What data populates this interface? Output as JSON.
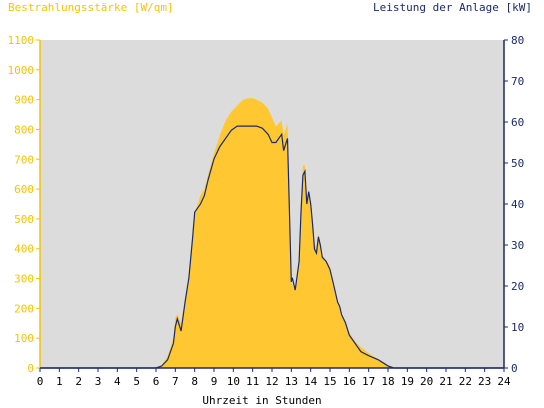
{
  "chart_data": {
    "type": "area",
    "title_left": "Bestrahlungsstärke [W/qm]",
    "title_right": "Leistung der Anlage [kW]",
    "xlabel": "Uhrzeit in Stunden",
    "xlim": [
      0,
      24
    ],
    "xticks": [
      0,
      1,
      2,
      3,
      4,
      5,
      6,
      7,
      8,
      9,
      10,
      11,
      12,
      13,
      14,
      15,
      16,
      17,
      18,
      19,
      20,
      21,
      22,
      23,
      24
    ],
    "y_left": {
      "lim": [
        0,
        1100
      ],
      "ticks": [
        0,
        100,
        200,
        300,
        400,
        500,
        600,
        700,
        800,
        900,
        1000,
        1100
      ]
    },
    "y_right": {
      "lim": [
        0,
        80
      ],
      "ticks": [
        0,
        10,
        20,
        30,
        40,
        50,
        60,
        70,
        80
      ]
    },
    "grid": false,
    "colors": {
      "irradiance": "#ffc832",
      "power": "#1a2a6c",
      "plot_bg": "#dcdcdc",
      "left_axis": "#f5c400",
      "right_axis": "#1a2a6c"
    },
    "series": [
      {
        "name": "Bestrahlungsstärke [W/qm]",
        "axis": "left",
        "style": "area",
        "x": [
          0,
          6.0,
          6.3,
          6.6,
          6.9,
          7.0,
          7.1,
          7.3,
          7.5,
          7.7,
          7.9,
          8.0,
          8.3,
          8.5,
          8.7,
          9.0,
          9.3,
          9.6,
          9.9,
          10.2,
          10.5,
          10.8,
          11.0,
          11.2,
          11.5,
          11.8,
          12.0,
          12.2,
          12.5,
          12.6,
          12.8,
          13.0,
          13.05,
          13.2,
          13.4,
          13.5,
          13.6,
          13.7,
          13.8,
          13.9,
          14.0,
          14.1,
          14.2,
          14.3,
          14.4,
          14.5,
          14.6,
          14.8,
          15.0,
          15.2,
          15.4,
          15.5,
          15.6,
          15.8,
          16.0,
          16.3,
          16.6,
          17.0,
          17.5,
          18.0,
          18.3,
          24
        ],
        "y": [
          0,
          0,
          10,
          40,
          100,
          170,
          180,
          150,
          230,
          320,
          440,
          520,
          580,
          600,
          650,
          720,
          780,
          830,
          860,
          880,
          900,
          905,
          905,
          900,
          890,
          870,
          840,
          810,
          830,
          780,
          820,
          300,
          280,
          260,
          350,
          520,
          680,
          680,
          560,
          600,
          560,
          500,
          420,
          400,
          450,
          420,
          380,
          360,
          340,
          280,
          220,
          200,
          180,
          150,
          120,
          90,
          70,
          50,
          30,
          10,
          0,
          0
        ]
      },
      {
        "name": "Leistung der Anlage [kW]",
        "axis": "right",
        "style": "line",
        "x": [
          0,
          6.0,
          6.3,
          6.6,
          6.9,
          7.0,
          7.1,
          7.3,
          7.5,
          7.7,
          7.9,
          8.0,
          8.3,
          8.5,
          8.7,
          9.0,
          9.3,
          9.6,
          9.9,
          10.2,
          10.5,
          10.8,
          11.0,
          11.2,
          11.5,
          11.8,
          12.0,
          12.2,
          12.5,
          12.6,
          12.8,
          13.0,
          13.05,
          13.2,
          13.4,
          13.5,
          13.6,
          13.7,
          13.8,
          13.9,
          14.0,
          14.1,
          14.2,
          14.3,
          14.4,
          14.5,
          14.6,
          14.8,
          15.0,
          15.2,
          15.4,
          15.5,
          15.6,
          15.8,
          16.0,
          16.3,
          16.6,
          17.0,
          17.5,
          18.0,
          18.3,
          24
        ],
        "y": [
          0,
          0,
          0.5,
          2,
          6,
          10,
          12,
          9,
          16,
          22,
          32,
          38,
          40,
          42,
          46,
          51,
          54,
          56,
          58,
          59,
          59,
          59,
          59,
          59,
          58.5,
          57,
          55,
          55,
          57,
          53,
          56,
          21,
          22,
          19,
          26,
          38,
          47,
          48,
          40,
          43,
          40,
          35,
          29,
          28,
          32,
          30,
          27,
          26,
          24,
          20,
          16,
          15,
          13,
          11,
          8,
          6,
          4,
          3,
          2,
          0.5,
          0,
          0
        ]
      }
    ]
  }
}
